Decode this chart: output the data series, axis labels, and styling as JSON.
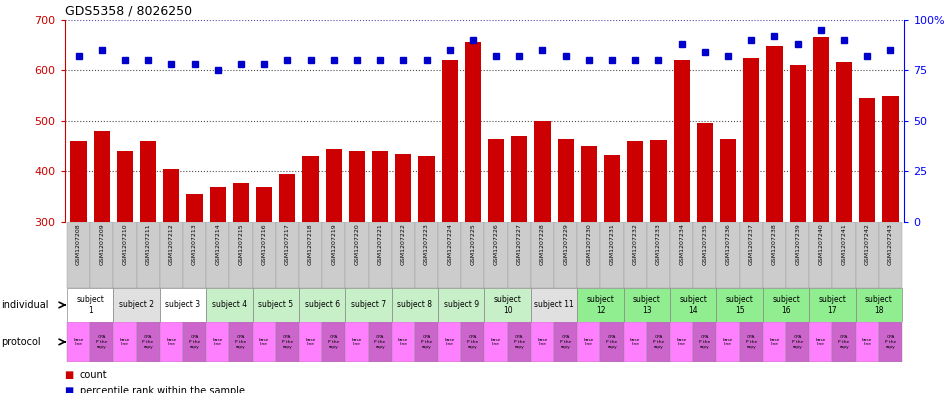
{
  "title": "GDS5358 / 8026250",
  "samples": [
    "GSM1207208",
    "GSM1207209",
    "GSM1207210",
    "GSM1207211",
    "GSM1207212",
    "GSM1207213",
    "GSM1207214",
    "GSM1207215",
    "GSM1207216",
    "GSM1207217",
    "GSM1207218",
    "GSM1207219",
    "GSM1207220",
    "GSM1207221",
    "GSM1207222",
    "GSM1207223",
    "GSM1207224",
    "GSM1207225",
    "GSM1207226",
    "GSM1207227",
    "GSM1207228",
    "GSM1207229",
    "GSM1207230",
    "GSM1207231",
    "GSM1207232",
    "GSM1207233",
    "GSM1207234",
    "GSM1207235",
    "GSM1207236",
    "GSM1207237",
    "GSM1207238",
    "GSM1207239",
    "GSM1207240",
    "GSM1207241",
    "GSM1207242",
    "GSM1207243"
  ],
  "counts": [
    460,
    480,
    440,
    460,
    405,
    355,
    370,
    378,
    370,
    395,
    430,
    445,
    440,
    440,
    435,
    430,
    620,
    655,
    465,
    470,
    500,
    465,
    450,
    432,
    460,
    462,
    620,
    495,
    465,
    624,
    648,
    610,
    665,
    616,
    545,
    550
  ],
  "percentile_ranks": [
    82,
    85,
    80,
    80,
    78,
    78,
    75,
    78,
    78,
    80,
    80,
    80,
    80,
    80,
    80,
    80,
    85,
    90,
    82,
    82,
    85,
    82,
    80,
    80,
    80,
    80,
    88,
    84,
    82,
    90,
    92,
    88,
    95,
    90,
    82,
    85
  ],
  "bar_color": "#cc0000",
  "dot_color": "#0000cc",
  "ylim_left": [
    300,
    700
  ],
  "ylim_right": [
    0,
    100
  ],
  "yticks_left": [
    300,
    400,
    500,
    600,
    700
  ],
  "yticks_right": [
    0,
    25,
    50,
    75,
    100
  ],
  "right_tick_labels": [
    "0",
    "25",
    "50",
    "75",
    "100%"
  ],
  "grid_values": [
    400,
    500,
    600
  ],
  "xticklabel_bg": "#cccccc",
  "subjects": [
    {
      "label": "subject\n1",
      "start": 0,
      "end": 2,
      "color": "#ffffff"
    },
    {
      "label": "subject 2",
      "start": 2,
      "end": 4,
      "color": "#e0e0e0"
    },
    {
      "label": "subject 3",
      "start": 4,
      "end": 6,
      "color": "#ffffff"
    },
    {
      "label": "subject 4",
      "start": 6,
      "end": 8,
      "color": "#c8f0c8"
    },
    {
      "label": "subject 5",
      "start": 8,
      "end": 10,
      "color": "#c8f0c8"
    },
    {
      "label": "subject 6",
      "start": 10,
      "end": 12,
      "color": "#c8f0c8"
    },
    {
      "label": "subject 7",
      "start": 12,
      "end": 14,
      "color": "#c8f0c8"
    },
    {
      "label": "subject 8",
      "start": 14,
      "end": 16,
      "color": "#c8f0c8"
    },
    {
      "label": "subject 9",
      "start": 16,
      "end": 18,
      "color": "#c8f0c8"
    },
    {
      "label": "subject\n10",
      "start": 18,
      "end": 20,
      "color": "#c8f0c8"
    },
    {
      "label": "subject 11",
      "start": 20,
      "end": 22,
      "color": "#e0e0e0"
    },
    {
      "label": "subject\n12",
      "start": 22,
      "end": 24,
      "color": "#90ee90"
    },
    {
      "label": "subject\n13",
      "start": 24,
      "end": 26,
      "color": "#90ee90"
    },
    {
      "label": "subject\n14",
      "start": 26,
      "end": 28,
      "color": "#90ee90"
    },
    {
      "label": "subject\n15",
      "start": 28,
      "end": 30,
      "color": "#90ee90"
    },
    {
      "label": "subject\n16",
      "start": 30,
      "end": 32,
      "color": "#90ee90"
    },
    {
      "label": "subject\n17",
      "start": 32,
      "end": 34,
      "color": "#90ee90"
    },
    {
      "label": "subject\n18",
      "start": 34,
      "end": 36,
      "color": "#90ee90"
    }
  ],
  "individual_label": "individual",
  "protocol_label": "protocol",
  "legend_count": "count",
  "legend_percentile": "percentile rank within the sample",
  "protocol_color_even": "#ff80ff",
  "protocol_color_odd": "#cc66cc",
  "protocol_text_even": "base\nline",
  "protocol_text_odd": "CPA\nP the\nrapy"
}
